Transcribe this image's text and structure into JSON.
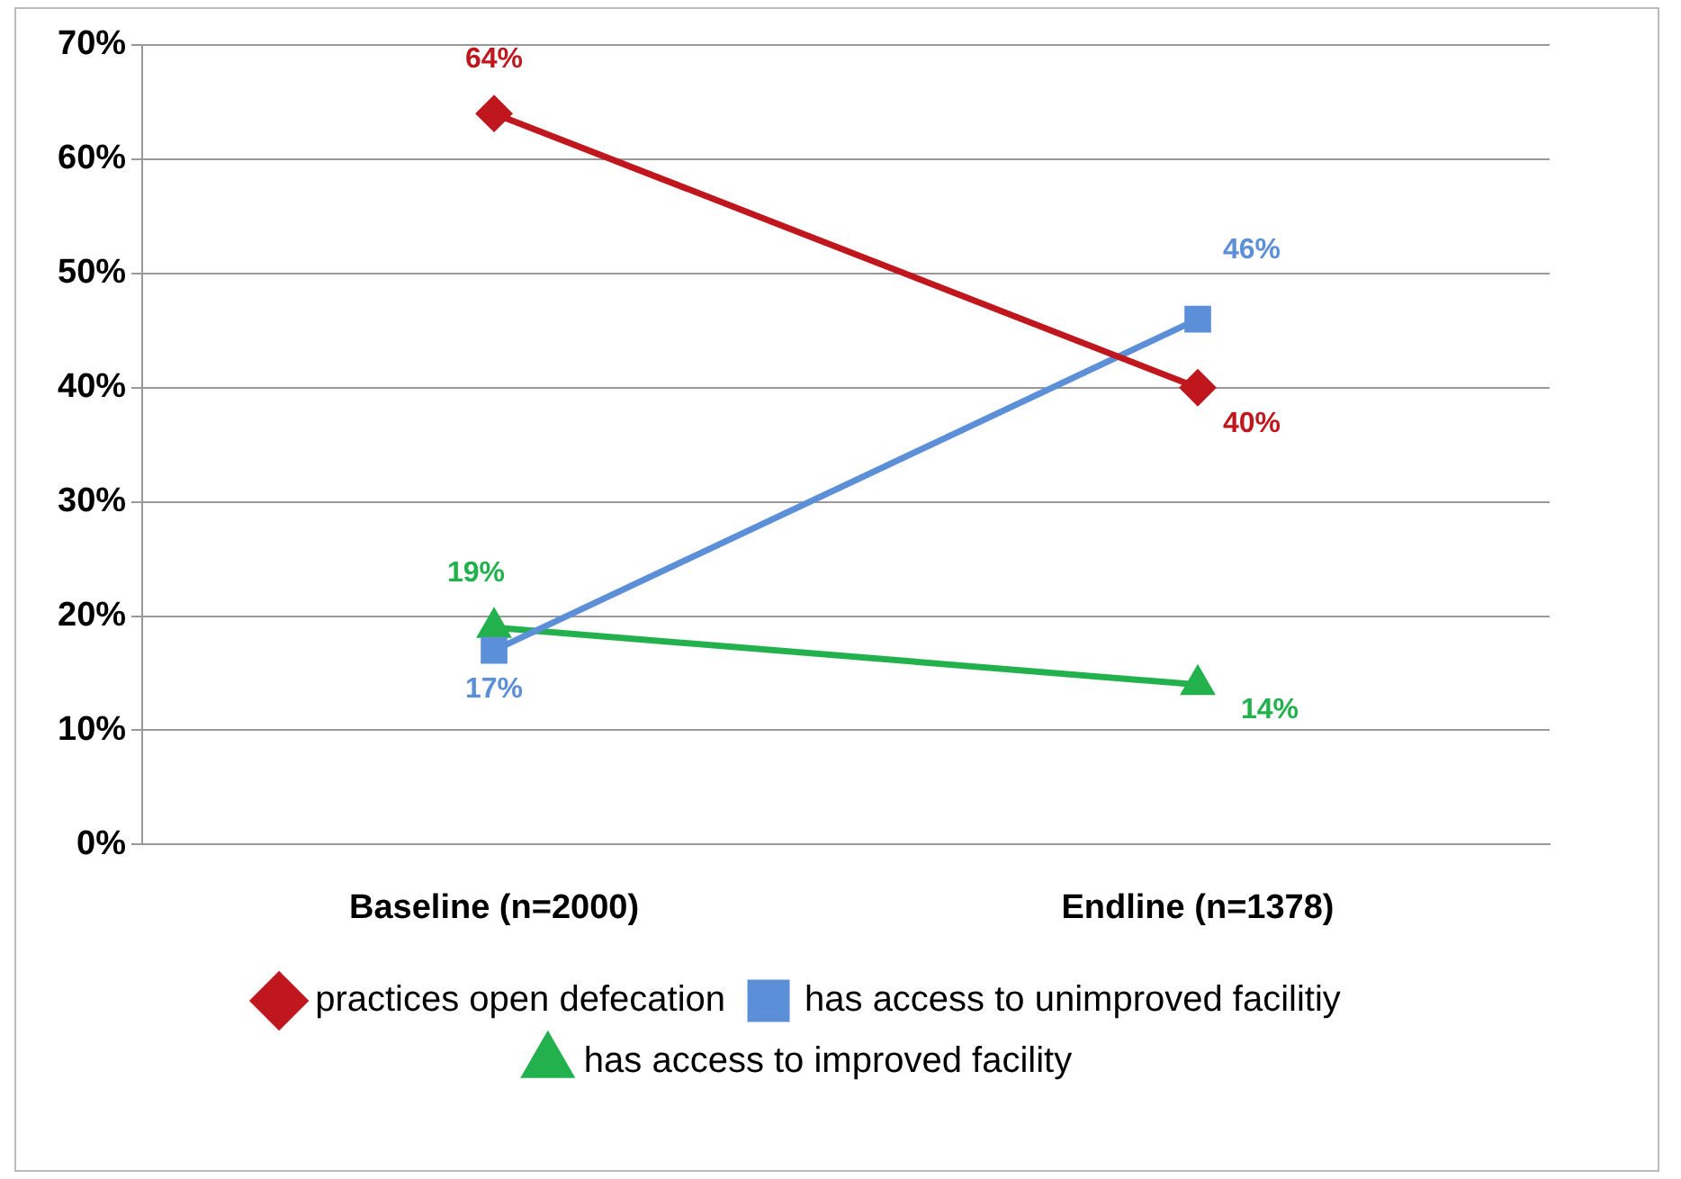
{
  "chart_data": {
    "type": "line",
    "categories": [
      "Baseline (n=2000)",
      "Endline (n=1378)"
    ],
    "series": [
      {
        "name": "practices open defecation",
        "color": "#c0171e",
        "values": [
          64,
          40
        ],
        "marker": "diamond",
        "value_labels": [
          "64%",
          "40%"
        ]
      },
      {
        "name": "has access to unimproved facilitiy",
        "color": "#5b8fd8",
        "values": [
          17,
          46
        ],
        "marker": "square",
        "value_labels": [
          "17%",
          "46%"
        ]
      },
      {
        "name": "has access to improved facility",
        "color": "#22b14c",
        "values": [
          19,
          14
        ],
        "marker": "triangle",
        "value_labels": [
          "19%",
          "14%"
        ]
      }
    ],
    "ylim": [
      0,
      70
    ],
    "yticks": [
      {
        "value": 0,
        "label": "0%"
      },
      {
        "value": 10,
        "label": "10%"
      },
      {
        "value": 20,
        "label": "20%"
      },
      {
        "value": 30,
        "label": "30%"
      },
      {
        "value": 40,
        "label": "40%"
      },
      {
        "value": 50,
        "label": "50%"
      },
      {
        "value": 60,
        "label": "60%"
      },
      {
        "value": 70,
        "label": "70%"
      }
    ],
    "grid": "y",
    "legend": "bottom",
    "line_style": "solid"
  }
}
